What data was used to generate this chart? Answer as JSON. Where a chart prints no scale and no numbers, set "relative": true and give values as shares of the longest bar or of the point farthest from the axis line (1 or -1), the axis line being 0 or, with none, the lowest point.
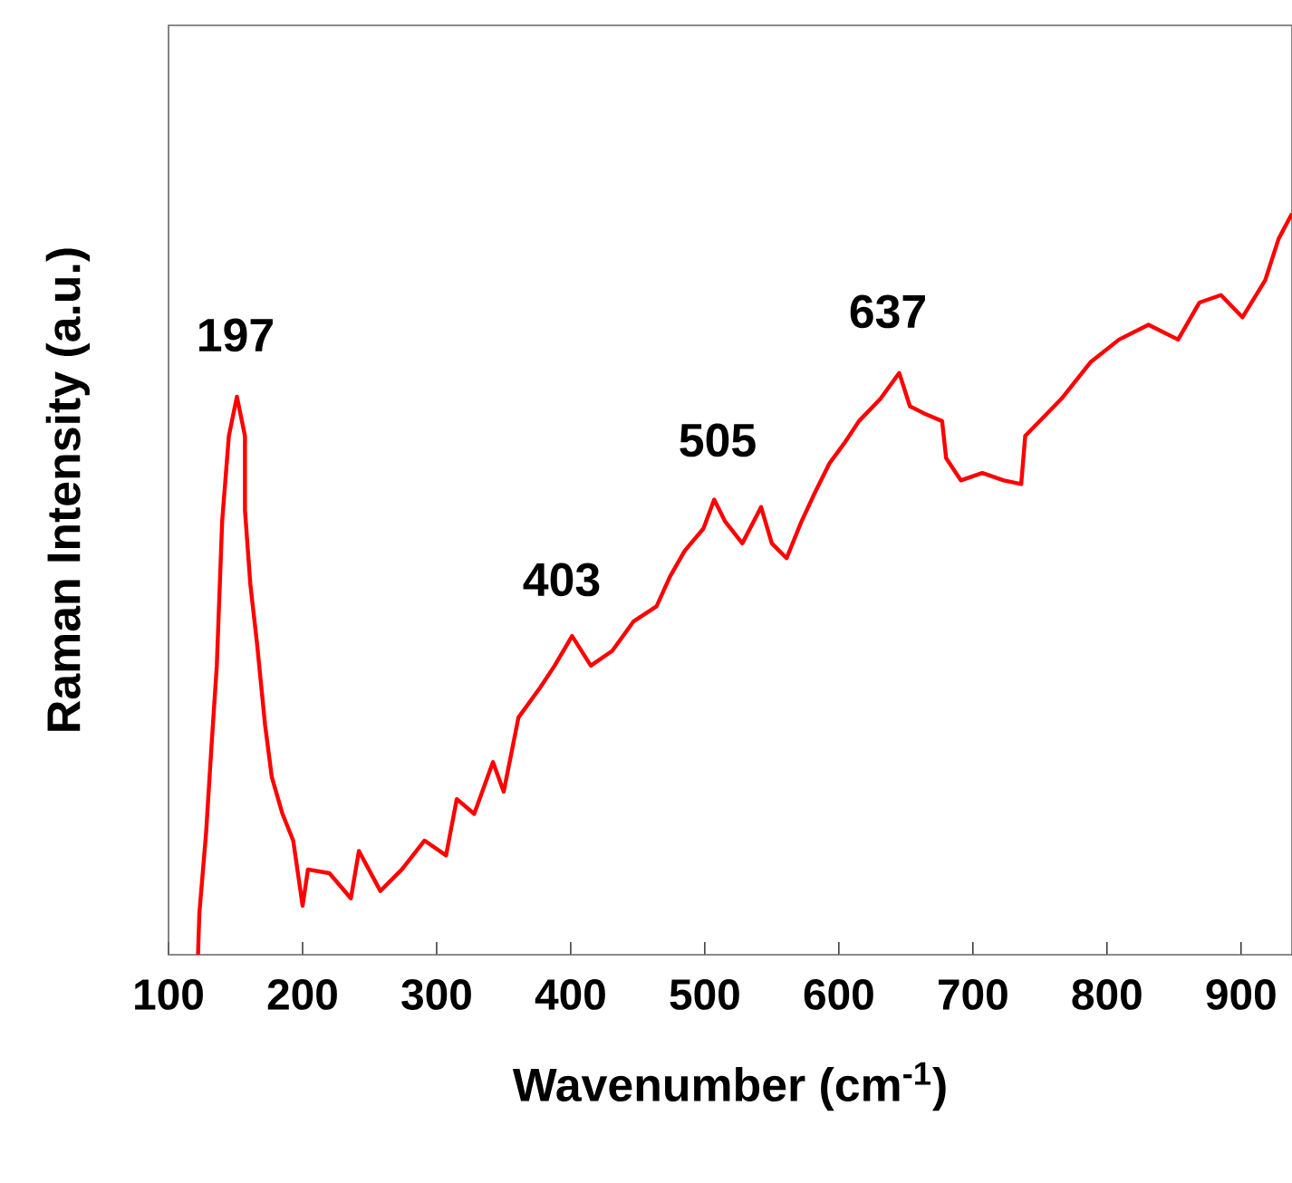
{
  "chart_data": {
    "type": "line",
    "relative": true,
    "xlabel": "Wavenumber (cm$^{-1}$)",
    "ylabel": "Raman Intensity (a.u.)",
    "xlim": [
      100,
      938
    ],
    "xticks": [
      100,
      200,
      300,
      400,
      500,
      600,
      700,
      800,
      900
    ],
    "x": [
      122,
      123,
      128,
      132,
      136,
      140,
      145,
      151,
      157,
      157,
      161,
      166,
      172,
      177,
      185,
      193,
      200,
      204,
      220,
      236,
      242,
      258,
      274,
      291,
      307,
      315,
      328,
      342,
      350,
      361,
      377,
      388,
      401,
      415,
      431,
      447,
      464,
      474,
      485,
      499,
      507,
      515,
      528,
      542,
      550,
      561,
      572,
      582,
      593,
      604,
      615,
      631,
      645,
      653,
      664,
      677,
      680,
      691,
      707,
      723,
      736,
      739,
      766,
      788,
      809,
      831,
      853,
      869,
      885,
      901,
      918,
      928,
      938
    ],
    "series": [
      {
        "color": "#ff0000",
        "values": [
          0,
          0.056,
          0.164,
          0.28,
          0.39,
          0.585,
          0.7,
          0.753,
          0.7,
          0.6,
          0.5,
          0.42,
          0.31,
          0.24,
          0.19,
          0.154,
          0.066,
          0.115,
          0.11,
          0.076,
          0.14,
          0.086,
          0.115,
          0.154,
          0.134,
          0.21,
          0.19,
          0.26,
          0.22,
          0.32,
          0.36,
          0.39,
          0.43,
          0.39,
          0.41,
          0.45,
          0.47,
          0.51,
          0.545,
          0.575,
          0.614,
          0.585,
          0.555,
          0.604,
          0.555,
          0.535,
          0.584,
          0.623,
          0.663,
          0.69,
          0.72,
          0.75,
          0.785,
          0.74,
          0.73,
          0.72,
          0.67,
          0.64,
          0.65,
          0.64,
          0.635,
          0.7,
          0.75,
          0.8,
          0.83,
          0.85,
          0.83,
          0.88,
          0.89,
          0.86,
          0.91,
          0.966,
          1.0
        ]
      }
    ],
    "annotations": [
      "197",
      "403",
      "505",
      "637"
    ],
    "grid": false,
    "marker": "none",
    "line_style": "solid"
  }
}
